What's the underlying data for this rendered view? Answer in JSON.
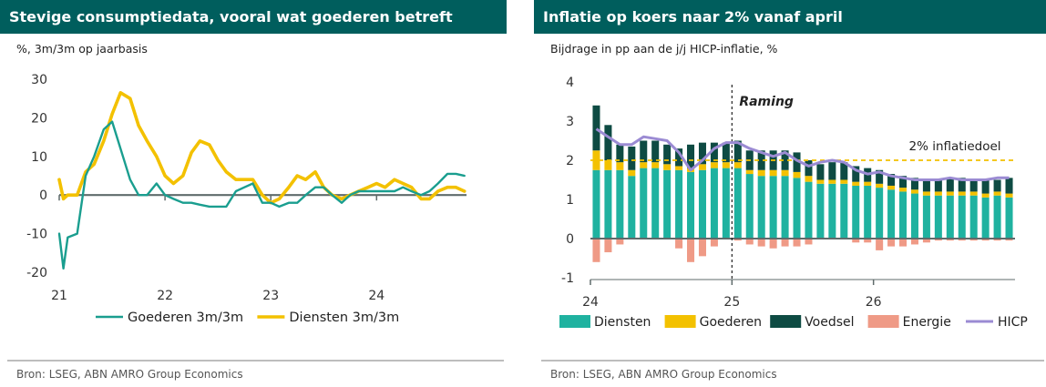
{
  "left_panel": {
    "title": "Stevige consumptiedata, vooral wat goederen betreft",
    "subtitle": "%, 3m/3m op jaarbasis",
    "source": "Bron: LSEG, ABN AMRO Group Economics"
  },
  "right_panel": {
    "title": "Inflatie op koers naar 2% vanaf april",
    "subtitle": "Bijdrage in pp aan de j/j HICP-inflatie, %",
    "source": "Bron: LSEG, ABN AMRO Group Economics"
  },
  "chart_data": [
    {
      "type": "line",
      "title": "Stevige consumptiedata, vooral wat goederen betreft",
      "ylabel": "%, 3m/3m op jaarbasis",
      "ylim": [
        -20,
        30
      ],
      "yticks": [
        -20,
        -10,
        0,
        10,
        20,
        30
      ],
      "yticklabels": [
        "-20",
        "-10",
        "0",
        "10",
        "20",
        "30"
      ],
      "xlim": [
        21.0,
        24.85
      ],
      "xticks": [
        21,
        22,
        23,
        24
      ],
      "xticklabels": [
        "21",
        "22",
        "23",
        "24"
      ],
      "legend_position": "bottom",
      "series": [
        {
          "name": "Goederen 3m/3m",
          "color": "#1a9e8f",
          "x": [
            21.0,
            21.04,
            21.08,
            21.17,
            21.25,
            21.33,
            21.42,
            21.5,
            21.58,
            21.67,
            21.75,
            21.83,
            21.92,
            22.0,
            22.08,
            22.17,
            22.25,
            22.33,
            22.42,
            22.5,
            22.58,
            22.67,
            22.75,
            22.83,
            22.92,
            23.0,
            23.08,
            23.17,
            23.25,
            23.33,
            23.42,
            23.5,
            23.58,
            23.67,
            23.75,
            23.83,
            23.92,
            24.0,
            24.08,
            24.17,
            24.25,
            24.33,
            24.42,
            24.5,
            24.58,
            24.67,
            24.75,
            24.83
          ],
          "values": [
            -10,
            -19,
            -11,
            -10,
            5,
            10,
            17,
            19,
            12,
            4,
            0,
            0,
            3,
            0,
            -1,
            -2,
            -2,
            -2.5,
            -3,
            -3,
            -3,
            1,
            2,
            3,
            -2,
            -2,
            -3,
            -2,
            -2,
            0,
            2,
            2,
            0,
            -2,
            0,
            1,
            1,
            1,
            1,
            1,
            2,
            1,
            0,
            1,
            3,
            5.5,
            5.5,
            5
          ]
        },
        {
          "name": "Diensten 3m/3m",
          "color": "#f3c100",
          "x": [
            21.0,
            21.04,
            21.08,
            21.17,
            21.25,
            21.33,
            21.42,
            21.5,
            21.58,
            21.67,
            21.75,
            21.83,
            21.92,
            22.0,
            22.08,
            22.17,
            22.25,
            22.33,
            22.42,
            22.5,
            22.58,
            22.67,
            22.75,
            22.83,
            22.92,
            23.0,
            23.08,
            23.17,
            23.25,
            23.33,
            23.42,
            23.5,
            23.58,
            23.67,
            23.75,
            23.83,
            23.92,
            24.0,
            24.08,
            24.17,
            24.25,
            24.33,
            24.42,
            24.5,
            24.58,
            24.67,
            24.75,
            24.83
          ],
          "values": [
            4,
            -1,
            0,
            0,
            6,
            8,
            14,
            21,
            26.5,
            25,
            18,
            14,
            10,
            5,
            3,
            5,
            11,
            14,
            13,
            9,
            6,
            4,
            4,
            4,
            0,
            -2,
            -1,
            2,
            5,
            4,
            6,
            2,
            0,
            -1,
            0,
            1,
            2,
            3,
            2,
            4,
            3,
            2,
            -1,
            -1,
            1,
            2,
            2,
            1
          ]
        }
      ]
    },
    {
      "type": "bar",
      "title": "Inflatie op koers naar 2% vanaf april",
      "ylabel": "Bijdrage in pp aan de j/j HICP-inflatie, %",
      "ylim": [
        -1,
        4
      ],
      "yticks": [
        -1,
        0,
        1,
        2,
        3,
        4
      ],
      "yticklabels": [
        "-1",
        "0",
        "1",
        "2",
        "3",
        "4"
      ],
      "xticks": [
        0,
        12,
        24
      ],
      "xticklabels": [
        "24",
        "25",
        "26"
      ],
      "forecast_start_index": 12,
      "forecast_label": "Raming",
      "target_value": 2.0,
      "target_label": "2% inflatiedoel",
      "legend_position": "bottom",
      "months": 36,
      "series": [
        {
          "name": "Diensten",
          "color": "#1fb2a0",
          "values": [
            1.75,
            1.75,
            1.75,
            1.6,
            1.8,
            1.8,
            1.75,
            1.75,
            1.7,
            1.75,
            1.8,
            1.8,
            1.8,
            1.65,
            1.6,
            1.6,
            1.6,
            1.55,
            1.45,
            1.4,
            1.4,
            1.4,
            1.35,
            1.35,
            1.3,
            1.25,
            1.2,
            1.15,
            1.1,
            1.1,
            1.1,
            1.1,
            1.1,
            1.05,
            1.1,
            1.05
          ]
        },
        {
          "name": "Goederen",
          "color": "#f3c100",
          "values": [
            0.5,
            0.25,
            0.2,
            0.15,
            0.15,
            0.15,
            0.15,
            0.1,
            0.1,
            0.15,
            0.15,
            0.15,
            0.15,
            0.1,
            0.15,
            0.15,
            0.15,
            0.15,
            0.15,
            0.1,
            0.1,
            0.1,
            0.1,
            0.1,
            0.1,
            0.1,
            0.1,
            0.1,
            0.1,
            0.1,
            0.1,
            0.1,
            0.1,
            0.1,
            0.1,
            0.1
          ]
        },
        {
          "name": "Voedsel",
          "color": "#0e4b43",
          "values": [
            1.15,
            0.9,
            0.45,
            0.6,
            0.55,
            0.55,
            0.5,
            0.45,
            0.6,
            0.55,
            0.5,
            0.5,
            0.55,
            0.5,
            0.5,
            0.5,
            0.5,
            0.5,
            0.4,
            0.4,
            0.45,
            0.45,
            0.4,
            0.35,
            0.35,
            0.3,
            0.3,
            0.3,
            0.3,
            0.3,
            0.35,
            0.35,
            0.3,
            0.35,
            0.3,
            0.4
          ]
        },
        {
          "name": "Energie",
          "color": "#ef9a86",
          "values": [
            -0.6,
            -0.35,
            -0.15,
            0,
            0,
            0,
            0,
            -0.25,
            -0.6,
            -0.45,
            -0.2,
            0,
            -0.05,
            -0.15,
            -0.2,
            -0.25,
            -0.2,
            -0.2,
            -0.15,
            0,
            0,
            0,
            -0.1,
            -0.1,
            -0.3,
            -0.2,
            -0.2,
            -0.15,
            -0.1,
            -0.05,
            -0.05,
            -0.05,
            -0.05,
            -0.05,
            -0.05,
            -0.05
          ]
        },
        {
          "name": "HICP",
          "color": "#9b8bd3",
          "type": "line",
          "values": [
            2.8,
            2.6,
            2.4,
            2.4,
            2.6,
            2.55,
            2.5,
            2.2,
            1.75,
            2.0,
            2.3,
            2.45,
            2.45,
            2.3,
            2.2,
            2.1,
            2.2,
            2.0,
            1.85,
            1.95,
            2.0,
            1.95,
            1.75,
            1.65,
            1.7,
            1.6,
            1.55,
            1.5,
            1.5,
            1.5,
            1.55,
            1.5,
            1.5,
            1.5,
            1.55,
            1.55
          ]
        }
      ]
    }
  ]
}
